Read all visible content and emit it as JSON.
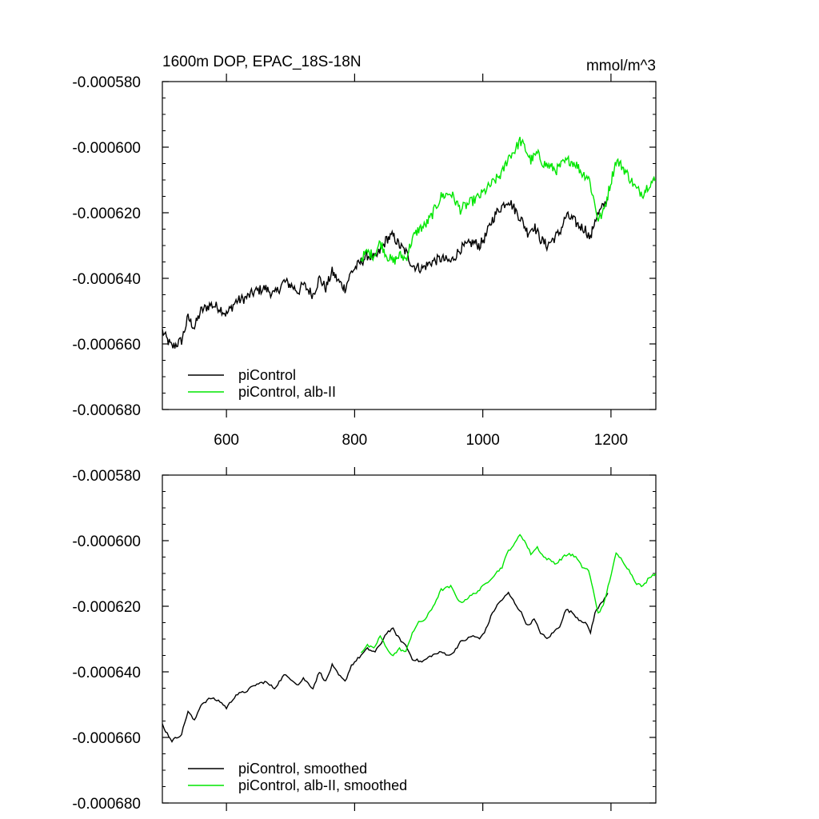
{
  "colors": {
    "piControl": "#000000",
    "alb": "#00e600",
    "frame": "#000000"
  },
  "chart_data": [
    {
      "type": "line",
      "title": "1600m DOP, EPAC_18S-18N",
      "units": "mmol/m^3",
      "xlim": [
        500,
        1270
      ],
      "ylim": [
        -0.00068,
        -0.00058
      ],
      "xticks": [
        600,
        800,
        1000,
        1200
      ],
      "xtick_labels": [
        "600",
        "800",
        "1000",
        "1200"
      ],
      "yticks": [
        -0.00058,
        -0.0006,
        -0.00062,
        -0.00064,
        -0.00066,
        -0.00068
      ],
      "ytick_labels": [
        "-0.000580",
        "-0.000600",
        "-0.000620",
        "-0.000640",
        "-0.000660",
        "-0.000680"
      ],
      "legend": [
        "piControl",
        "piControl, alb-II"
      ],
      "legend_position": "bottom-left",
      "series": [
        {
          "name": "piControl",
          "color": "#000000",
          "noise": 1.6e-06,
          "x": [
            500,
            505,
            515,
            530,
            540,
            550,
            560,
            575,
            590,
            600,
            615,
            630,
            645,
            660,
            675,
            690,
            700,
            712,
            720,
            735,
            745,
            755,
            765,
            775,
            785,
            795,
            800,
            810,
            820,
            832,
            842,
            850,
            860,
            870,
            880,
            890,
            905,
            920,
            935,
            950,
            965,
            975,
            985,
            995,
            1005,
            1015,
            1025,
            1040,
            1050,
            1060,
            1070,
            1080,
            1090,
            1100,
            1110,
            1120,
            1130,
            1140,
            1150,
            1160,
            1168,
            1175,
            1185,
            1195
          ],
          "y": [
            -0.000656,
            -0.000658,
            -0.000661,
            -0.000659,
            -0.000652,
            -0.000655,
            -0.00065,
            -0.000648,
            -0.000649,
            -0.000651,
            -0.000647,
            -0.000646,
            -0.000644,
            -0.000643,
            -0.000645,
            -0.000641,
            -0.000642,
            -0.000644,
            -0.000642,
            -0.000645,
            -0.00064,
            -0.000643,
            -0.000638,
            -0.000641,
            -0.000643,
            -0.000638,
            -0.000637,
            -0.000635,
            -0.000633,
            -0.000634,
            -0.000631,
            -0.000628,
            -0.000627,
            -0.00063,
            -0.000632,
            -0.000636,
            -0.000637,
            -0.000635,
            -0.000634,
            -0.000635,
            -0.000631,
            -0.00063,
            -0.000629,
            -0.00063,
            -0.000627,
            -0.000622,
            -0.000619,
            -0.000616,
            -0.000619,
            -0.000622,
            -0.000626,
            -0.000624,
            -0.000628,
            -0.00063,
            -0.000628,
            -0.000626,
            -0.000621,
            -0.000622,
            -0.000624,
            -0.000625,
            -0.000628,
            -0.000622,
            -0.000619,
            -0.000616
          ]
        },
        {
          "name": "piControl, alb-II",
          "color": "#00e600",
          "noise": 1.6e-06,
          "x": [
            810,
            820,
            830,
            840,
            850,
            860,
            870,
            880,
            890,
            900,
            910,
            920,
            935,
            950,
            965,
            980,
            995,
            1010,
            1020,
            1030,
            1040,
            1050,
            1058,
            1065,
            1075,
            1085,
            1095,
            1105,
            1115,
            1125,
            1135,
            1145,
            1155,
            1165,
            1172,
            1180,
            1188,
            1198,
            1208,
            1218,
            1228,
            1240,
            1250,
            1260,
            1270
          ],
          "y": [
            -0.000634,
            -0.000632,
            -0.000633,
            -0.000629,
            -0.000633,
            -0.000635,
            -0.000633,
            -0.000634,
            -0.000628,
            -0.000625,
            -0.000624,
            -0.000621,
            -0.000615,
            -0.000614,
            -0.000619,
            -0.000617,
            -0.000615,
            -0.000612,
            -0.00061,
            -0.000608,
            -0.000603,
            -0.000601,
            -0.000598,
            -0.0006,
            -0.000604,
            -0.000602,
            -0.000605,
            -0.000606,
            -0.000607,
            -0.000605,
            -0.000604,
            -0.000605,
            -0.000608,
            -0.000609,
            -0.000615,
            -0.000622,
            -0.00062,
            -0.000612,
            -0.000604,
            -0.000606,
            -0.000609,
            -0.000613,
            -0.000614,
            -0.000611,
            -0.00061
          ]
        }
      ]
    },
    {
      "type": "line",
      "title": "",
      "units": "",
      "xlim": [
        500,
        1270
      ],
      "ylim": [
        -0.00068,
        -0.00058
      ],
      "xticks": [
        600,
        800,
        1000,
        1200
      ],
      "xtick_labels": [],
      "yticks": [
        -0.00058,
        -0.0006,
        -0.00062,
        -0.00064,
        -0.00066,
        -0.00068
      ],
      "ytick_labels": [
        "-0.000580",
        "-0.000600",
        "-0.000620",
        "-0.000640",
        "-0.000660",
        "-0.000680"
      ],
      "legend": [
        "piControl, smoothed",
        "piControl, alb-II, smoothed"
      ],
      "legend_position": "bottom-left",
      "series": [
        {
          "name": "piControl, smoothed",
          "color": "#000000",
          "noise": 4e-07,
          "x": [
            500,
            505,
            515,
            530,
            540,
            550,
            560,
            575,
            590,
            600,
            615,
            630,
            645,
            660,
            675,
            690,
            700,
            712,
            720,
            735,
            745,
            755,
            765,
            775,
            785,
            795,
            800,
            810,
            820,
            832,
            842,
            850,
            860,
            870,
            880,
            890,
            905,
            920,
            935,
            950,
            965,
            975,
            985,
            995,
            1005,
            1015,
            1025,
            1040,
            1050,
            1060,
            1070,
            1080,
            1090,
            1100,
            1110,
            1120,
            1130,
            1140,
            1150,
            1160,
            1168,
            1175,
            1185,
            1195
          ],
          "y": [
            -0.000656,
            -0.000658,
            -0.000661,
            -0.000659,
            -0.000652,
            -0.000655,
            -0.00065,
            -0.000648,
            -0.000649,
            -0.000651,
            -0.000647,
            -0.000646,
            -0.000644,
            -0.000643,
            -0.000645,
            -0.000641,
            -0.000642,
            -0.000644,
            -0.000642,
            -0.000645,
            -0.00064,
            -0.000643,
            -0.000638,
            -0.000641,
            -0.000643,
            -0.000638,
            -0.000637,
            -0.000635,
            -0.000633,
            -0.000634,
            -0.000631,
            -0.000628,
            -0.000627,
            -0.00063,
            -0.000632,
            -0.000636,
            -0.000637,
            -0.000635,
            -0.000634,
            -0.000635,
            -0.000631,
            -0.00063,
            -0.000629,
            -0.00063,
            -0.000627,
            -0.000622,
            -0.000619,
            -0.000616,
            -0.000619,
            -0.000622,
            -0.000626,
            -0.000624,
            -0.000628,
            -0.00063,
            -0.000628,
            -0.000626,
            -0.000621,
            -0.000622,
            -0.000624,
            -0.000625,
            -0.000628,
            -0.000622,
            -0.000619,
            -0.000616
          ]
        },
        {
          "name": "piControl, alb-II, smoothed",
          "color": "#00e600",
          "noise": 4e-07,
          "x": [
            810,
            820,
            830,
            840,
            850,
            860,
            870,
            880,
            890,
            900,
            910,
            920,
            935,
            950,
            965,
            980,
            995,
            1010,
            1020,
            1030,
            1040,
            1050,
            1058,
            1065,
            1075,
            1085,
            1095,
            1105,
            1115,
            1125,
            1135,
            1145,
            1155,
            1165,
            1172,
            1180,
            1188,
            1198,
            1208,
            1218,
            1228,
            1240,
            1250,
            1260,
            1270
          ],
          "y": [
            -0.000634,
            -0.000632,
            -0.000633,
            -0.000629,
            -0.000633,
            -0.000635,
            -0.000633,
            -0.000634,
            -0.000628,
            -0.000625,
            -0.000624,
            -0.000621,
            -0.000615,
            -0.000614,
            -0.000619,
            -0.000617,
            -0.000615,
            -0.000612,
            -0.00061,
            -0.000608,
            -0.000603,
            -0.000601,
            -0.000598,
            -0.0006,
            -0.000604,
            -0.000602,
            -0.000605,
            -0.000606,
            -0.000607,
            -0.000605,
            -0.000604,
            -0.000605,
            -0.000608,
            -0.000609,
            -0.000615,
            -0.000622,
            -0.00062,
            -0.000612,
            -0.000604,
            -0.000606,
            -0.000609,
            -0.000613,
            -0.000614,
            -0.000611,
            -0.00061
          ]
        }
      ]
    }
  ]
}
